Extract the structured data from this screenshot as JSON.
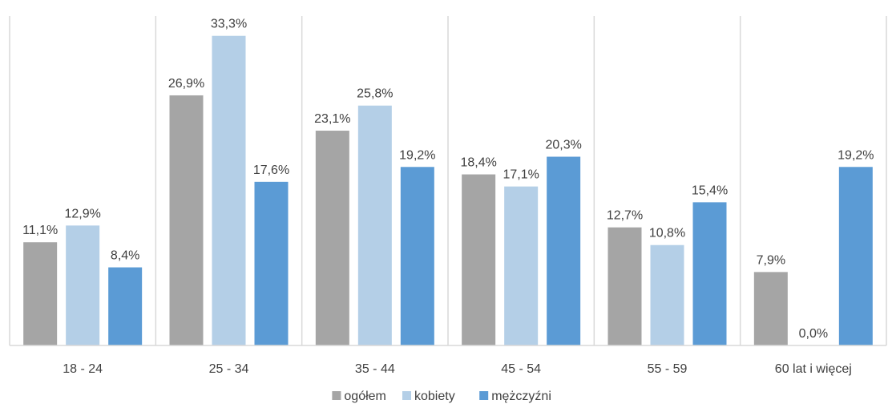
{
  "chart_data": {
    "type": "bar",
    "categories": [
      "18 - 24",
      "25 - 34",
      "35 - 44",
      "45 - 54",
      "55 - 59",
      "60 lat i więcej"
    ],
    "series": [
      {
        "name": "ogółem",
        "color": "#a5a5a5",
        "values": [
          11.1,
          26.9,
          23.1,
          18.4,
          12.7,
          7.9
        ],
        "labels": [
          "11,1%",
          "26,9%",
          "23,1%",
          "18,4%",
          "12,7%",
          "7,9%"
        ]
      },
      {
        "name": "kobiety",
        "color": "#b4cfe7",
        "values": [
          12.9,
          33.3,
          25.8,
          17.1,
          10.8,
          0.0
        ],
        "labels": [
          "12,9%",
          "33,3%",
          "25,8%",
          "17,1%",
          "10,8%",
          "0,0%"
        ]
      },
      {
        "name": "mężczyźni",
        "color": "#5b9bd5",
        "values": [
          8.4,
          17.6,
          19.2,
          20.3,
          15.4,
          19.2
        ],
        "labels": [
          "8,4%",
          "17,6%",
          "19,2%",
          "20,3%",
          "15,4%",
          "19,2%"
        ]
      }
    ],
    "ylim": [
      0,
      34
    ],
    "grid": false,
    "legend_position": "bottom"
  }
}
